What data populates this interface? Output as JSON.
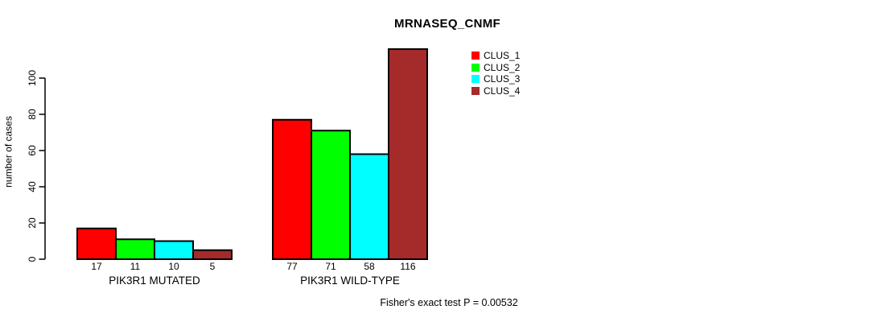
{
  "chart_data": {
    "type": "bar",
    "title": "MRNASEQ_CNMF",
    "ylabel": "number of cases",
    "xlabel": "",
    "categories": [
      "PIK3R1 MUTATED",
      "PIK3R1 WILD-TYPE"
    ],
    "series": [
      {
        "name": "CLUS_1",
        "color": "#FF0000",
        "values": [
          17,
          77
        ]
      },
      {
        "name": "CLUS_2",
        "color": "#00FF00",
        "values": [
          11,
          71
        ]
      },
      {
        "name": "CLUS_3",
        "color": "#00FFFF",
        "values": [
          10,
          58
        ]
      },
      {
        "name": "CLUS_4",
        "color": "#A52A2A",
        "values": [
          5,
          116
        ]
      }
    ],
    "yticks": [
      0,
      20,
      40,
      60,
      80,
      100
    ],
    "ylim": [
      0,
      116
    ],
    "grid": false,
    "legend_position": "top-right",
    "bar_value_labels": true,
    "bar_border_color": "#000000",
    "annotation": "Fisher's exact test P = 0.00532"
  }
}
